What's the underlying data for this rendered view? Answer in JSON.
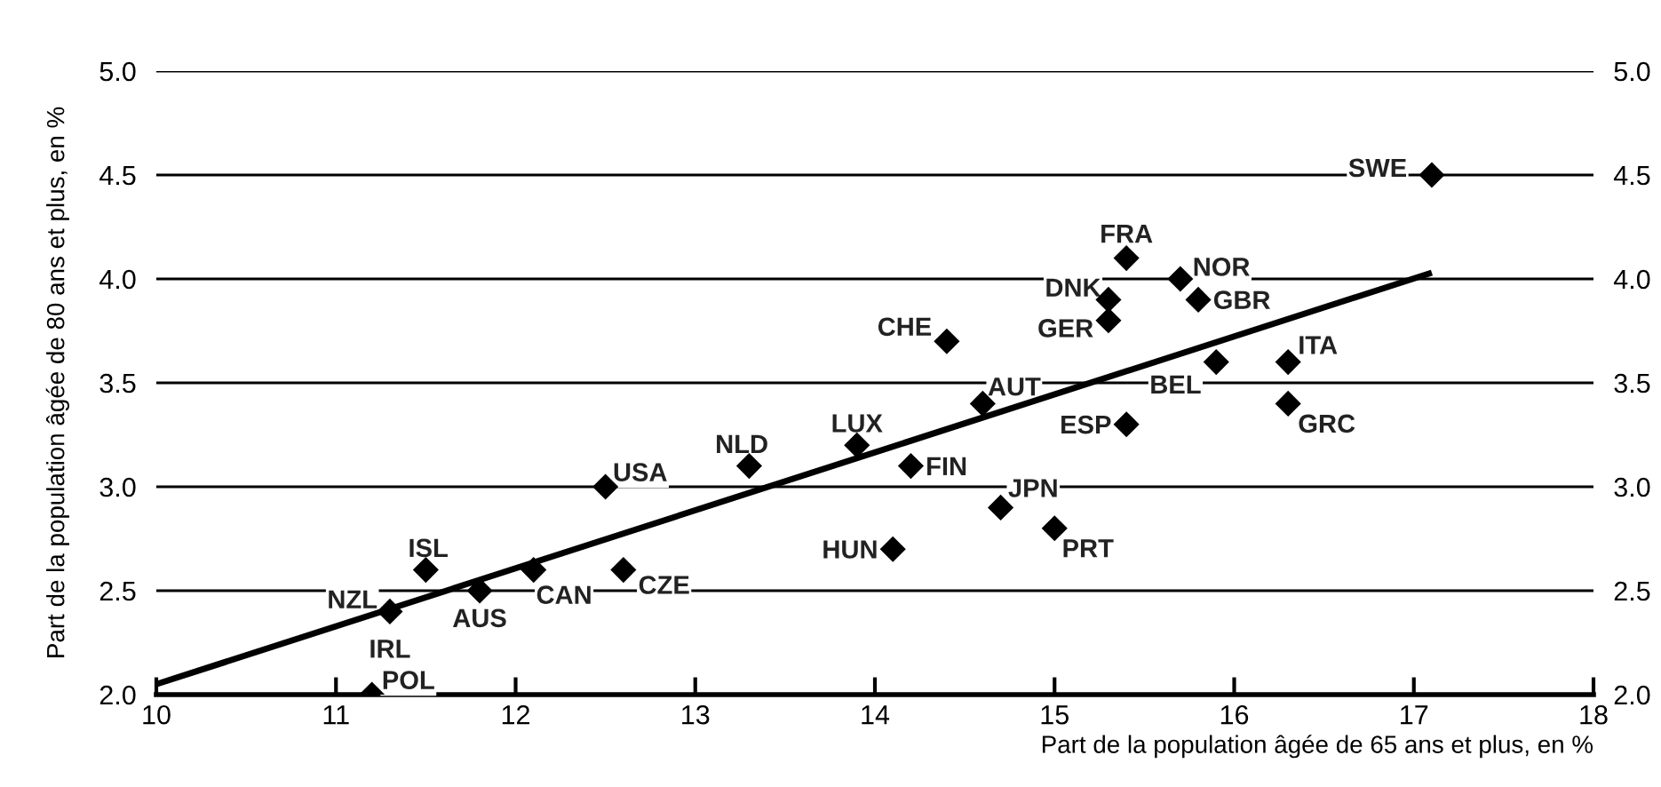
{
  "chart_data": {
    "type": "scatter",
    "xlabel": "Part de la population âgée de 65 ans et plus, en %",
    "ylabel": "Part de la population âgée de 80 ans et plus, en %",
    "xlim": [
      10,
      18
    ],
    "xticks": [
      10,
      11,
      12,
      13,
      14,
      15,
      16,
      17,
      18
    ],
    "ylim": [
      2.0,
      5.0
    ],
    "yticks": [
      {
        "value": 2.0,
        "label": "2.0"
      },
      {
        "value": 2.5,
        "label": "2.5"
      },
      {
        "value": 3.0,
        "label": "3.0"
      },
      {
        "value": 3.5,
        "label": "3.5"
      },
      {
        "value": 4.0,
        "label": "4.0"
      },
      {
        "value": 4.5,
        "label": "4.5"
      },
      {
        "value": 5.0,
        "label": "5.0"
      }
    ],
    "y2lim": [
      2.0,
      5.0
    ],
    "y2ticks": [
      {
        "value": 2.0,
        "label": "2.0"
      },
      {
        "value": 2.5,
        "label": "2.5"
      },
      {
        "value": 3.0,
        "label": "3.0"
      },
      {
        "value": 3.5,
        "label": "3.5"
      },
      {
        "value": 4.0,
        "label": "4.0"
      },
      {
        "value": 4.5,
        "label": "4.5"
      },
      {
        "value": 5.0,
        "label": "5.0"
      }
    ],
    "grid": "y",
    "legend": false,
    "marker": "diamond",
    "series": [
      {
        "color": "#000000",
        "x": [
          17.1,
          15.4,
          15.7,
          15.3,
          15.8,
          15.3,
          14.4,
          16.3,
          15.9,
          16.3,
          14.6,
          15.4,
          13.9,
          13.3,
          14.2,
          12.5,
          14.7,
          15.0,
          14.1,
          11.5,
          12.6,
          12.1,
          11.8,
          11.3,
          11.2
        ],
        "values": [
          4.5,
          4.1,
          4.0,
          3.9,
          3.9,
          3.8,
          3.7,
          3.6,
          3.6,
          3.4,
          3.4,
          3.3,
          3.2,
          3.1,
          3.1,
          3.0,
          2.9,
          2.8,
          2.7,
          2.6,
          2.6,
          2.6,
          2.5,
          2.4,
          2.0
        ]
      },
      {
        "type": "line",
        "color": "#000000",
        "marker": "none",
        "line_style": "solid",
        "x": [
          10,
          17.1
        ],
        "values": [
          2.05,
          4.03
        ]
      }
    ],
    "annotations": [
      {
        "text": "SWE",
        "x": 17.1,
        "y": 4.5
      },
      {
        "text": "FRA",
        "x": 15.4,
        "y": 4.1
      },
      {
        "text": "NOR",
        "x": 15.7,
        "y": 4.0
      },
      {
        "text": "DNK",
        "x": 15.3,
        "y": 3.9
      },
      {
        "text": "GBR",
        "x": 15.8,
        "y": 3.9
      },
      {
        "text": "GER",
        "x": 15.3,
        "y": 3.8
      },
      {
        "text": "CHE",
        "x": 14.4,
        "y": 3.7
      },
      {
        "text": "ITA",
        "x": 16.3,
        "y": 3.6
      },
      {
        "text": "BEL",
        "x": 15.9,
        "y": 3.6
      },
      {
        "text": "GRC",
        "x": 16.3,
        "y": 3.4
      },
      {
        "text": "AUT",
        "x": 14.6,
        "y": 3.4
      },
      {
        "text": "ESP",
        "x": 15.4,
        "y": 3.3
      },
      {
        "text": "LUX",
        "x": 13.9,
        "y": 3.2
      },
      {
        "text": "NLD",
        "x": 13.3,
        "y": 3.1
      },
      {
        "text": "FIN",
        "x": 14.2,
        "y": 3.1
      },
      {
        "text": "USA",
        "x": 12.5,
        "y": 3.0
      },
      {
        "text": "JPN",
        "x": 14.7,
        "y": 2.9
      },
      {
        "text": "PRT",
        "x": 15.0,
        "y": 2.8
      },
      {
        "text": "HUN",
        "x": 14.1,
        "y": 2.7
      },
      {
        "text": "ISL",
        "x": 11.5,
        "y": 2.6
      },
      {
        "text": "CZE",
        "x": 12.6,
        "y": 2.6
      },
      {
        "text": "CAN",
        "x": 12.1,
        "y": 2.6
      },
      {
        "text": "AUS",
        "x": 11.8,
        "y": 2.5
      },
      {
        "text": "NZL",
        "x": 11.3,
        "y": 2.4
      },
      {
        "text": "IRL",
        "x": 11.3,
        "y": 2.4
      },
      {
        "text": "POL",
        "x": 11.2,
        "y": 2.0
      }
    ]
  }
}
